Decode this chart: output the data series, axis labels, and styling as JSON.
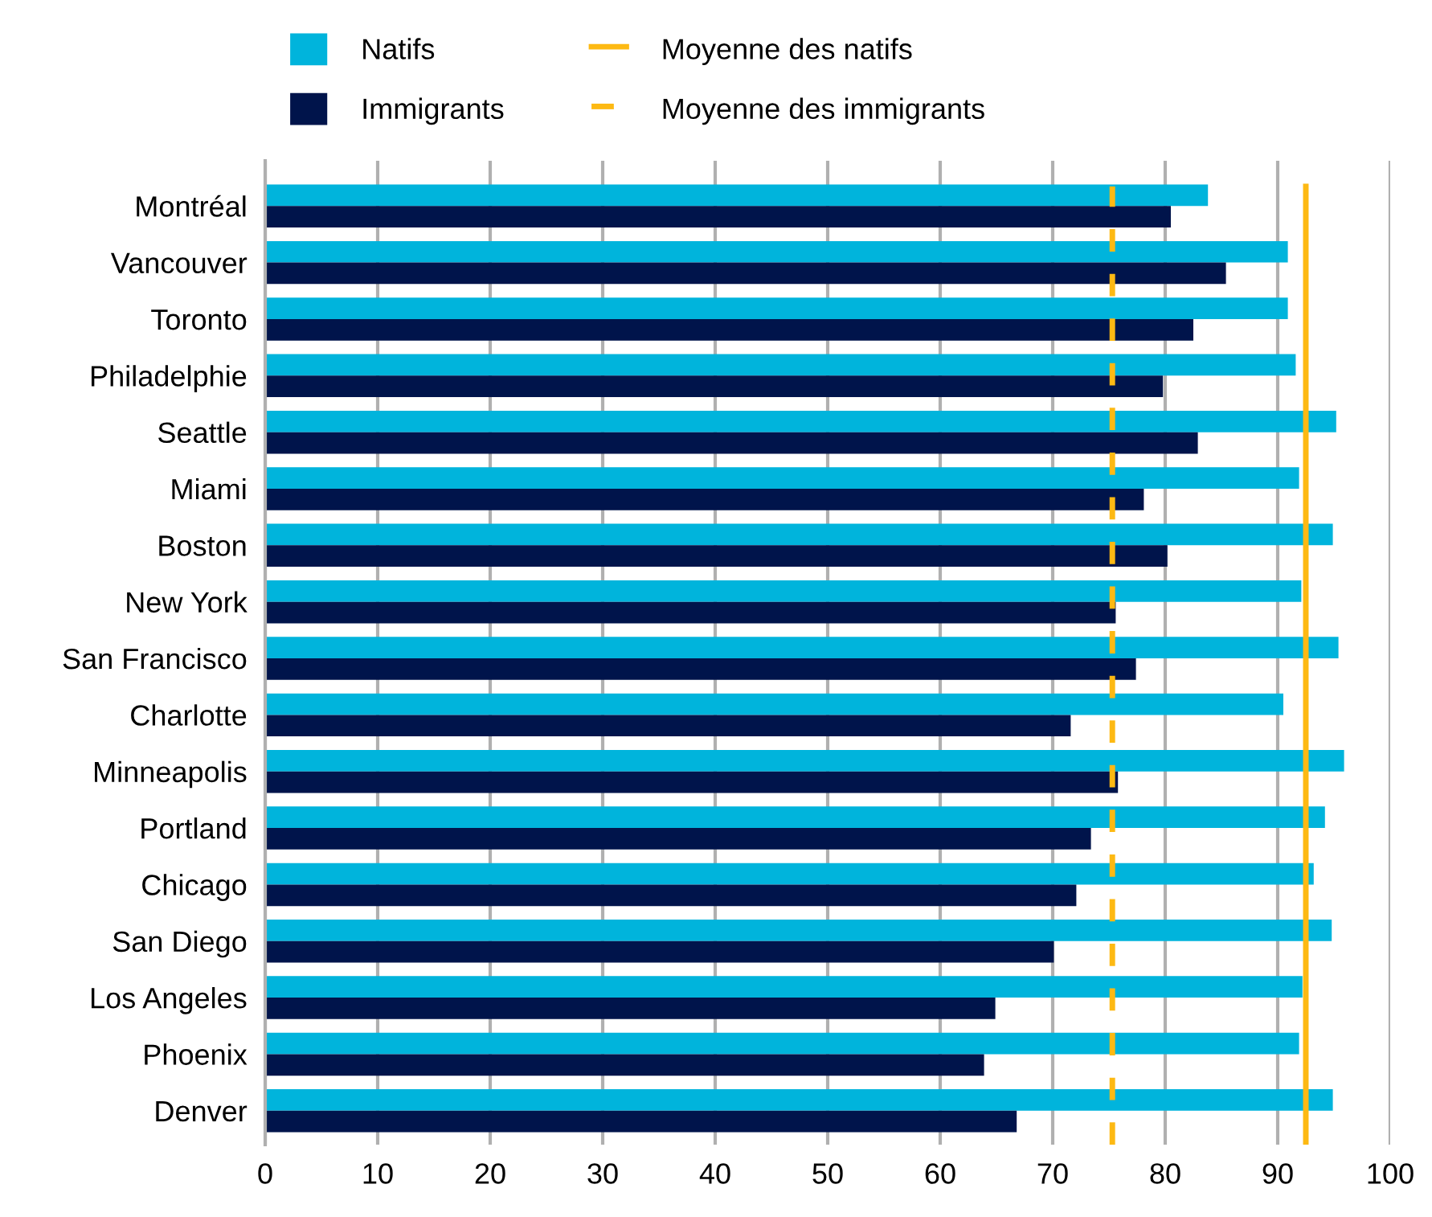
{
  "chart_data": {
    "type": "bar",
    "orientation": "horizontal",
    "categories": [
      "Montréal",
      "Vancouver",
      "Toronto",
      "Philadelphie",
      "Seattle",
      "Miami",
      "Boston",
      "New York",
      "San Francisco",
      "Charlotte",
      "Minneapolis",
      "Portland",
      "Chicago",
      "San Diego",
      "Los Angeles",
      "Phoenix",
      "Denver"
    ],
    "series": [
      {
        "name": "Natifs",
        "color": "#00b4dc",
        "values": [
          83.8,
          90.9,
          90.9,
          91.6,
          95.2,
          91.9,
          94.9,
          92.1,
          95.4,
          90.5,
          95.9,
          94.2,
          93.2,
          94.8,
          92.2,
          91.9,
          94.9
        ]
      },
      {
        "name": "Immigrants",
        "color": "#00144b",
        "values": [
          80.5,
          85.4,
          82.5,
          79.8,
          82.9,
          78.1,
          80.2,
          75.6,
          77.4,
          71.6,
          75.8,
          73.4,
          72.1,
          70.1,
          64.9,
          63.9,
          66.8
        ]
      }
    ],
    "ref_lines": [
      {
        "axis": "x",
        "value": 92.5,
        "label": "Moyenne des natifs",
        "color": "#fdb913",
        "line_style": "solid"
      },
      {
        "axis": "x",
        "value": 75.3,
        "label": "Moyenne des immigrants",
        "color": "#fdb913",
        "line_style": "dashed"
      }
    ],
    "xlim": [
      0,
      100
    ],
    "xticks": [
      0,
      10,
      20,
      30,
      40,
      50,
      60,
      70,
      80,
      90,
      100
    ],
    "grid": "x",
    "legend": "top"
  }
}
